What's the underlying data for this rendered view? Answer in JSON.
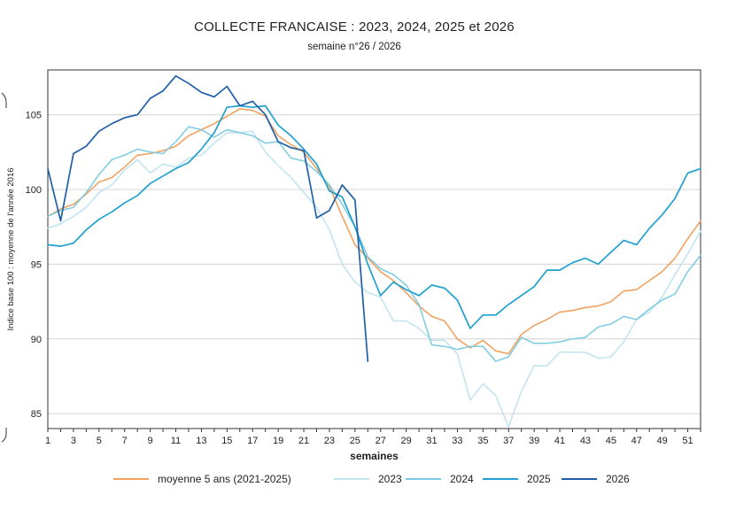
{
  "chart_data": {
    "type": "line",
    "title": "COLLECTE FRANCAISE : 2023, 2024, 2025 et 2026",
    "subtitle": "semaine n°26 / 2026",
    "xlabel": "semaines",
    "ylabel": "Indice base 100 : moyenne de l'année 2016",
    "xlim": [
      1,
      52
    ],
    "ylim": [
      84,
      108
    ],
    "x_ticks": [
      1,
      3,
      5,
      7,
      9,
      11,
      13,
      15,
      17,
      19,
      21,
      23,
      25,
      27,
      29,
      31,
      33,
      35,
      37,
      39,
      41,
      43,
      45,
      47,
      49,
      51
    ],
    "y_ticks": [
      85,
      90,
      95,
      100,
      105
    ],
    "grid": "horizontal",
    "legend_position": "bottom",
    "series": [
      {
        "name": "moyenne 5 ans (2021-2025)",
        "color": "#f0a262",
        "width": 1.6,
        "values": [
          98.2,
          98.7,
          99.0,
          99.7,
          100.5,
          100.8,
          101.5,
          102.3,
          102.4,
          102.6,
          102.9,
          103.6,
          104.0,
          104.4,
          104.9,
          105.4,
          105.3,
          104.9,
          103.6,
          103.0,
          102.5,
          101.4,
          100.2,
          98.2,
          96.3,
          95.4,
          94.5,
          93.9,
          93.1,
          92.2,
          91.5,
          91.2,
          90.0,
          89.4,
          89.9,
          89.2,
          89.0,
          90.3,
          90.9,
          91.3,
          91.8,
          91.9,
          92.1,
          92.2,
          92.5,
          93.2,
          93.3,
          93.9,
          94.5,
          95.4,
          96.7,
          97.9
        ]
      },
      {
        "name": "2023",
        "color": "#bfe3f1",
        "width": 1.5,
        "values": [
          97.4,
          97.7,
          98.2,
          98.8,
          99.8,
          100.3,
          101.3,
          102.0,
          101.1,
          101.7,
          101.5,
          102.1,
          102.3,
          103.1,
          103.8,
          103.8,
          103.9,
          102.5,
          101.6,
          100.8,
          99.8,
          98.8,
          97.3,
          95.0,
          93.8,
          93.1,
          92.8,
          91.2,
          91.2,
          90.7,
          89.9,
          89.9,
          89.0,
          85.9,
          87.0,
          86.2,
          84.1,
          86.5,
          88.2,
          88.2,
          89.1,
          89.1,
          89.1,
          88.7,
          88.8,
          89.8,
          91.3,
          91.8,
          92.8,
          94.3,
          95.7,
          97.2
        ]
      },
      {
        "name": "2024",
        "color": "#7ccbe2",
        "width": 1.5,
        "values": [
          98.2,
          98.6,
          98.8,
          99.8,
          101.0,
          102.0,
          102.3,
          102.7,
          102.5,
          102.4,
          103.2,
          104.2,
          104.0,
          103.5,
          104.0,
          103.8,
          103.6,
          103.1,
          103.2,
          102.1,
          101.9,
          101.2,
          100.3,
          99.0,
          97.5,
          95.5,
          94.7,
          94.3,
          93.6,
          92.3,
          89.6,
          89.5,
          89.3,
          89.5,
          89.5,
          88.5,
          88.8,
          90.1,
          89.7,
          89.7,
          89.8,
          90.0,
          90.1,
          90.8,
          91.0,
          91.5,
          91.3,
          92.0,
          92.6,
          93.0,
          94.5,
          95.6
        ]
      },
      {
        "name": "2025",
        "color": "#1fa0cf",
        "width": 1.7,
        "values": [
          96.3,
          96.2,
          96.4,
          97.3,
          98.0,
          98.5,
          99.1,
          99.6,
          100.4,
          100.9,
          101.4,
          101.8,
          102.7,
          103.8,
          105.5,
          105.6,
          105.5,
          105.6,
          104.3,
          103.6,
          102.7,
          101.7,
          99.9,
          99.5,
          97.5,
          95.0,
          92.9,
          93.8,
          93.3,
          92.9,
          93.6,
          93.4,
          92.6,
          90.7,
          91.6,
          91.6,
          92.3,
          92.9,
          93.5,
          94.6,
          94.6,
          95.1,
          95.4,
          95.0,
          95.8,
          96.6,
          96.3,
          97.4,
          98.3,
          99.4,
          101.1,
          101.4
        ]
      },
      {
        "name": "2026",
        "color": "#1f5fa8",
        "width": 1.7,
        "values": [
          101.4,
          97.9,
          102.4,
          102.9,
          103.9,
          104.4,
          104.8,
          105.0,
          106.1,
          106.6,
          107.6,
          107.1,
          106.5,
          106.2,
          106.9,
          105.6,
          105.9,
          105.0,
          103.2,
          102.8,
          102.6,
          98.1,
          98.6,
          100.3,
          99.3,
          88.5
        ]
      }
    ]
  }
}
